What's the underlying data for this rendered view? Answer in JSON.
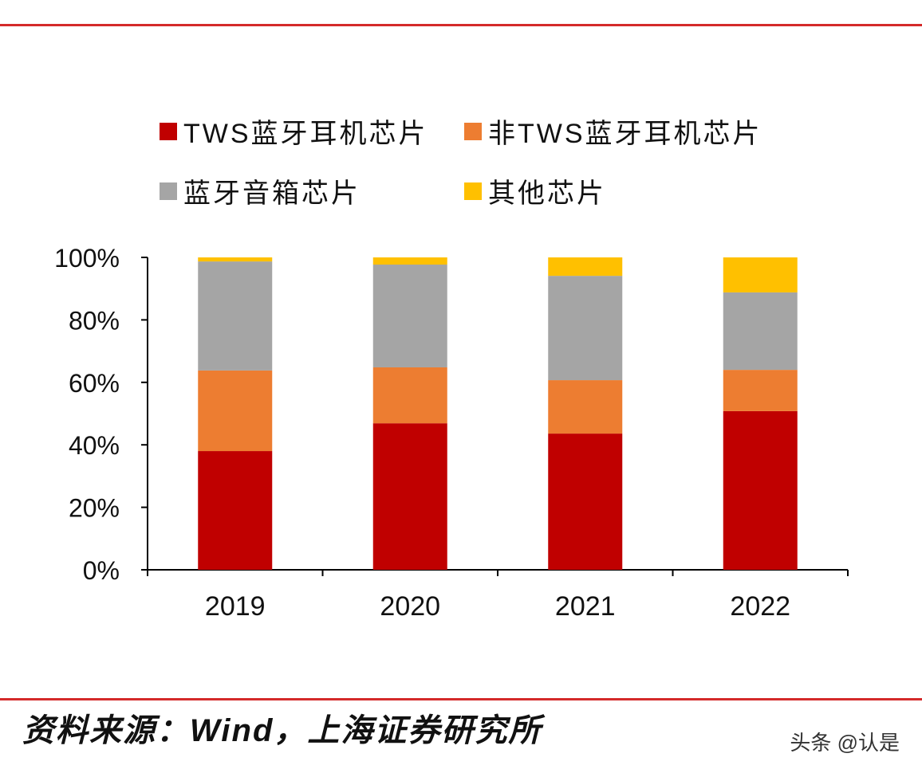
{
  "chart_data": {
    "type": "bar",
    "stacked": true,
    "categories": [
      "2019",
      "2020",
      "2021",
      "2022"
    ],
    "series": [
      {
        "name": "TWS蓝牙耳机芯片",
        "color": "#c00000",
        "values": [
          38.0,
          46.9,
          43.6,
          50.8
        ]
      },
      {
        "name": "非TWS蓝牙耳机芯片",
        "color": "#ed7d31",
        "values": [
          25.8,
          17.9,
          17.1,
          13.2
        ]
      },
      {
        "name": "蓝牙音箱芯片",
        "color": "#a5a5a5",
        "values": [
          34.9,
          32.9,
          33.4,
          24.8
        ]
      },
      {
        "name": "其他芯片",
        "color": "#ffc000",
        "values": [
          1.3,
          2.3,
          5.9,
          11.2
        ]
      }
    ],
    "ylim": [
      0,
      100
    ],
    "yticks": [
      "0%",
      "20%",
      "40%",
      "60%",
      "80%",
      "100%"
    ],
    "grid": false,
    "legend_placement": "top"
  },
  "source": "资料来源：Wind，上海证券研究所",
  "watermark": "头条 @认是",
  "accent_color": "#d42a2a"
}
